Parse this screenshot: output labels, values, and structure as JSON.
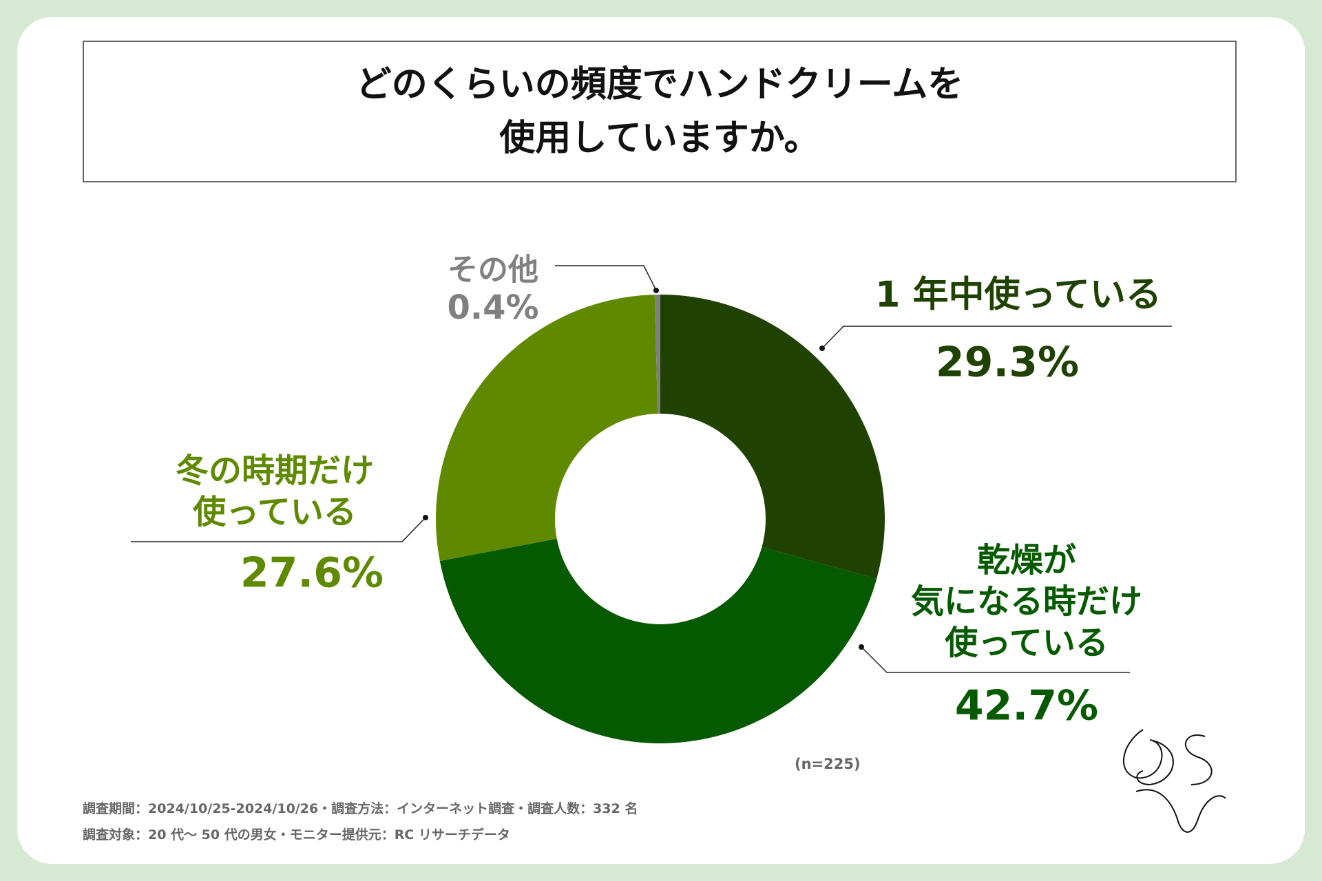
{
  "chart_data": {
    "type": "donut",
    "title": "どのくらいの頻度でハンドクリームを\n使用していますか。",
    "categories": [
      "1 年中使っている",
      "乾燥が\n気になる時だけ\n使っている",
      "冬の時期だけ\n使っている",
      "その他"
    ],
    "values": [
      29.3,
      42.7,
      27.6,
      0.4
    ],
    "value_labels": [
      "29.3%",
      "42.7%",
      "27.6%",
      "0.4%"
    ],
    "colors": [
      "#1f4200",
      "#055a00",
      "#5f8a00",
      "#808080"
    ],
    "sample_note": "(n=225)",
    "footnotes": [
      "調査期間：2024/10/25-2024/10/26・調査方法：インターネット調査・調査人数：332 名",
      "調査対象：20 代～ 50 代の男女・モニター提供元：RC リサーチデータ"
    ]
  }
}
